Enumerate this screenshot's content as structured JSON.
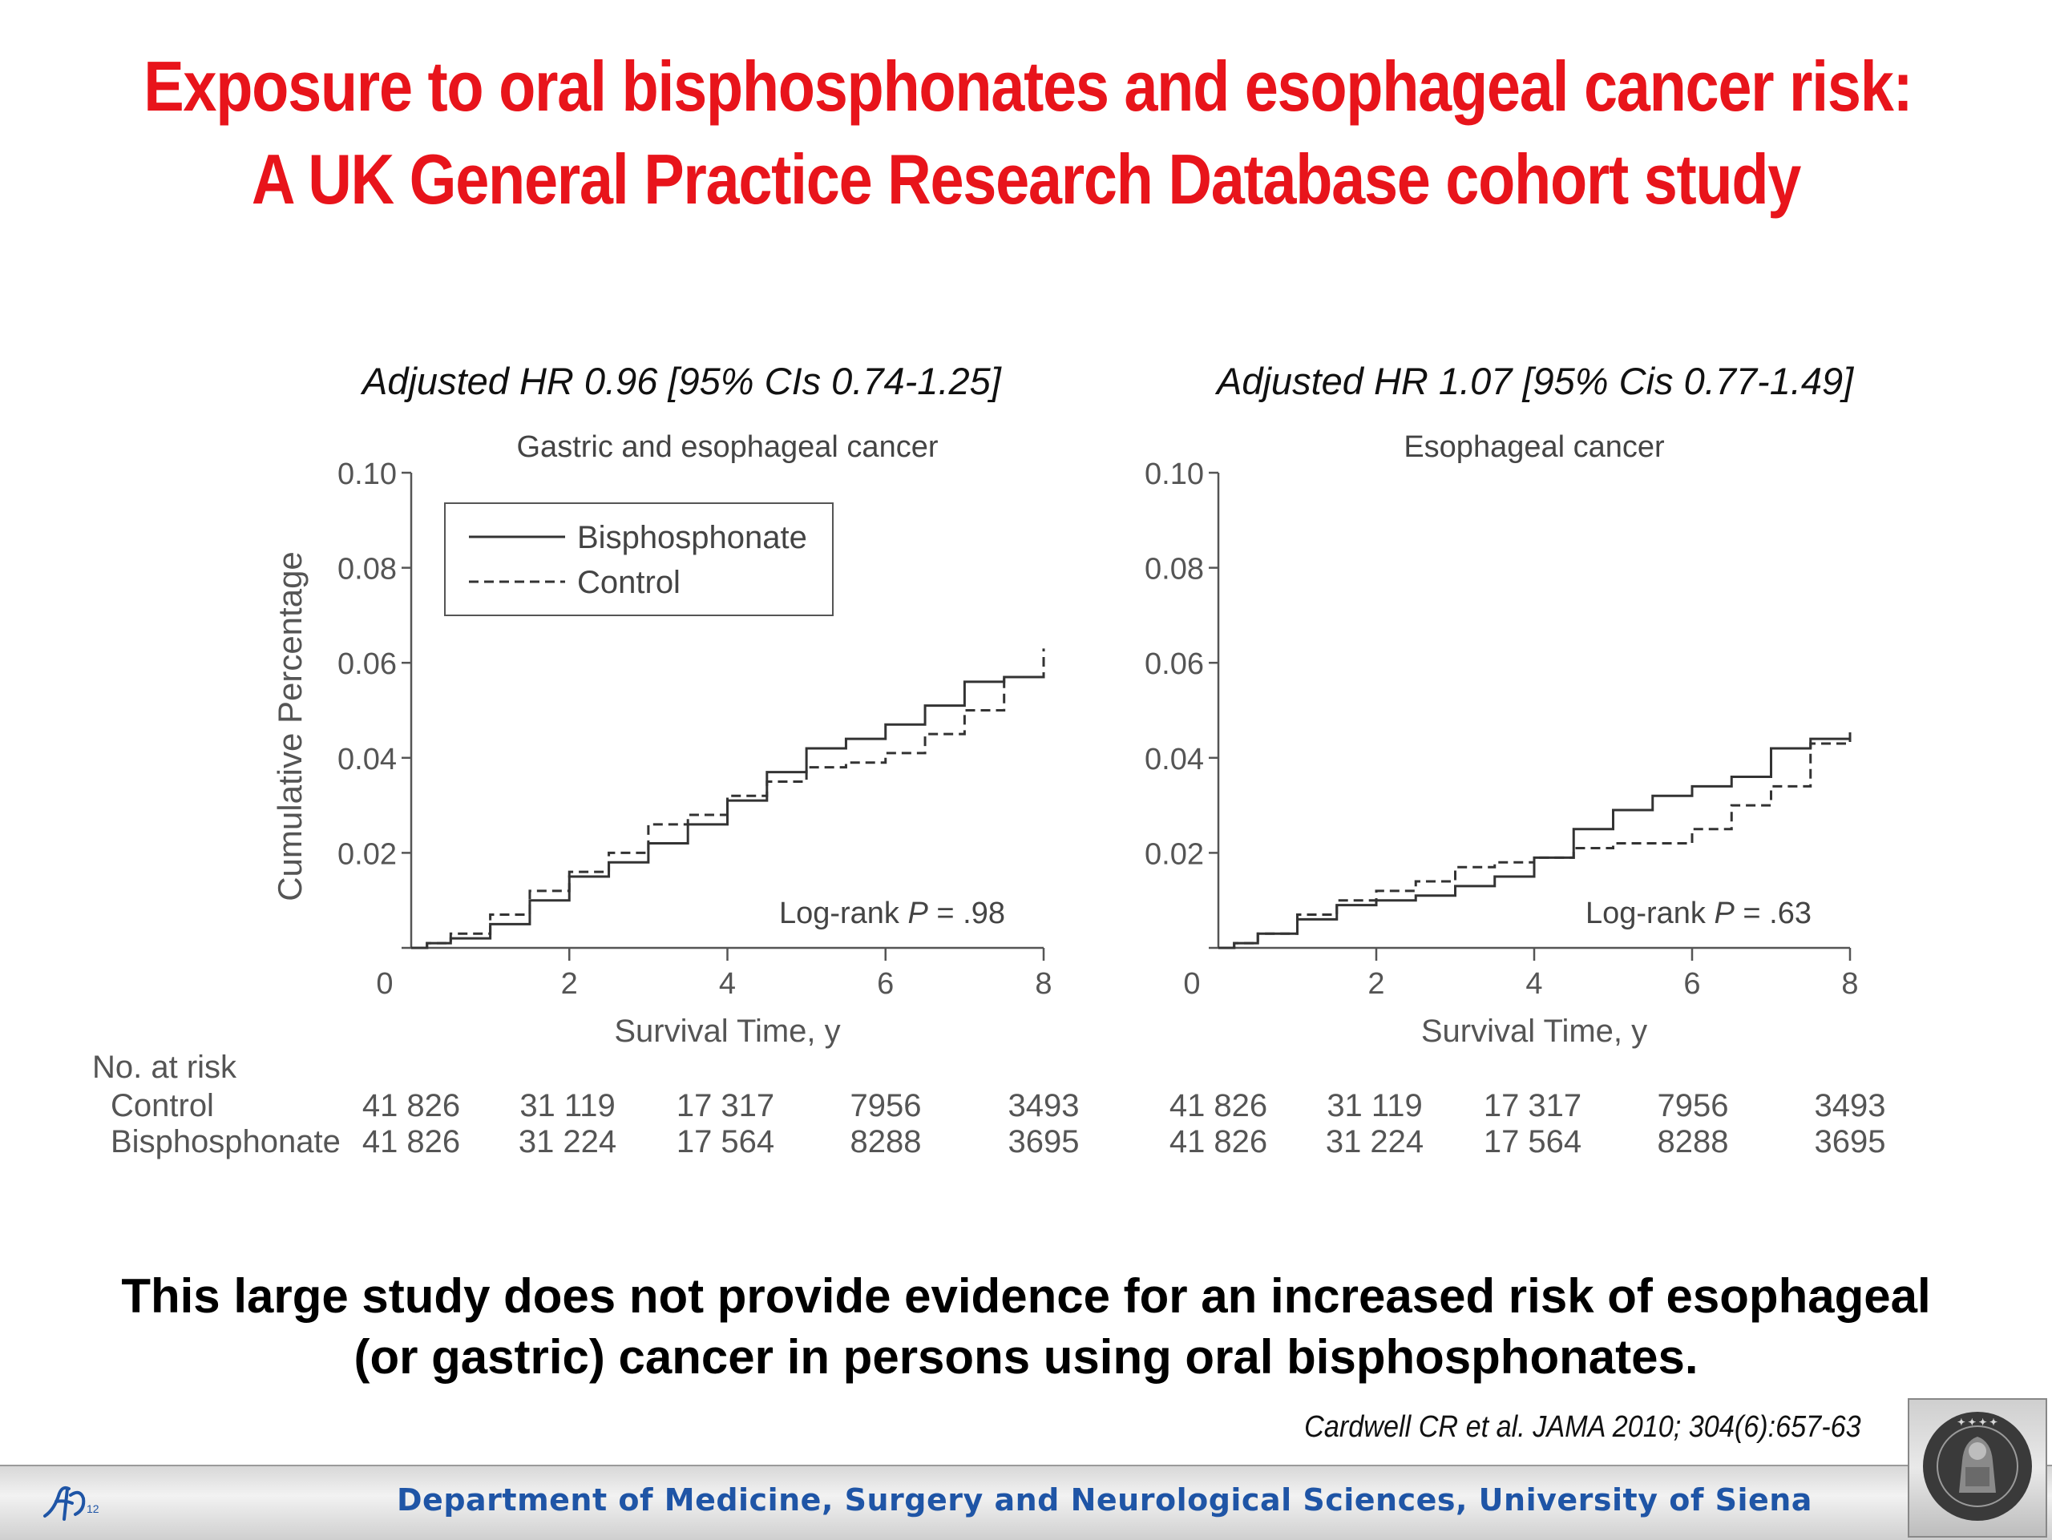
{
  "slide": {
    "title_line1": "Exposure to oral bisphosphonates and esophageal cancer risk:",
    "title_line2": "A UK General Practice Research Database cohort study",
    "conclusion_line1": "This large study does not provide evidence for an increased risk of esophageal",
    "conclusion_line2": "(or gastric) cancer in persons using oral bisphosphonates.",
    "citation": "Cardwell CR et al. JAMA 2010; 304(6):657-63",
    "footer": "Department of Medicine, Surgery and Neurological Sciences, University of Siena",
    "footer_logo_text": "12",
    "seal_text": "SIGILLVM UNIVERSITATIS SENENSIS MCCXXXX",
    "colors": {
      "title": "#e8141b",
      "footer_text": "#1f55a6",
      "axis": "#555555",
      "line": "#333333"
    }
  },
  "chart_data": [
    {
      "type": "line",
      "hr_label": "Adjusted HR 0.96 [95% CIs 0.74-1.25]",
      "title": "Gastric and esophageal cancer",
      "xlabel": "Survival Time, y",
      "ylabel": "Cumulative Percentage",
      "xlim": [
        0,
        8
      ],
      "ylim": [
        0,
        0.1
      ],
      "xticks": [
        "0",
        "2",
        "4",
        "6",
        "8"
      ],
      "yticks": [
        "0.02",
        "0.04",
        "0.06",
        "0.08",
        "0.10"
      ],
      "ytick_values": [
        0.02,
        0.04,
        0.06,
        0.08,
        0.1
      ],
      "legend_position": "top-left",
      "annotation_prefix": "Log-rank ",
      "annotation_p": "P",
      "annotation_value": " = .98",
      "series": [
        {
          "name": "Bisphosphonate",
          "style": "solid",
          "points": [
            [
              0,
              0
            ],
            [
              0.2,
              0.001
            ],
            [
              0.5,
              0.002
            ],
            [
              1,
              0.005
            ],
            [
              1.5,
              0.01
            ],
            [
              2,
              0.015
            ],
            [
              2.5,
              0.018
            ],
            [
              3,
              0.022
            ],
            [
              3.5,
              0.026
            ],
            [
              4,
              0.031
            ],
            [
              4.5,
              0.037
            ],
            [
              5,
              0.042
            ],
            [
              5.5,
              0.044
            ],
            [
              6,
              0.047
            ],
            [
              6.5,
              0.051
            ],
            [
              7,
              0.056
            ],
            [
              7.5,
              0.057
            ],
            [
              8,
              0.058
            ]
          ]
        },
        {
          "name": "Control",
          "style": "dashed",
          "points": [
            [
              0,
              0
            ],
            [
              0.2,
              0.001
            ],
            [
              0.5,
              0.003
            ],
            [
              1,
              0.007
            ],
            [
              1.5,
              0.012
            ],
            [
              2,
              0.016
            ],
            [
              2.5,
              0.02
            ],
            [
              3,
              0.026
            ],
            [
              3.5,
              0.028
            ],
            [
              4,
              0.032
            ],
            [
              4.5,
              0.035
            ],
            [
              5,
              0.038
            ],
            [
              5.5,
              0.039
            ],
            [
              6,
              0.041
            ],
            [
              6.5,
              0.045
            ],
            [
              7,
              0.05
            ],
            [
              7.5,
              0.057
            ],
            [
              8,
              0.063
            ]
          ]
        }
      ],
      "risk_table": {
        "header": "No. at risk",
        "rows": [
          {
            "label": "Control",
            "values": [
              "41 826",
              "31 119",
              "17 317",
              "7956",
              "3493"
            ]
          },
          {
            "label": "Bisphosphonate",
            "values": [
              "41 826",
              "31 224",
              "17 564",
              "8288",
              "3695"
            ]
          }
        ]
      }
    },
    {
      "type": "line",
      "hr_label": "Adjusted HR 1.07 [95% Cis 0.77-1.49]",
      "title": "Esophageal cancer",
      "xlabel": "Survival Time, y",
      "xlim": [
        0,
        8
      ],
      "ylim": [
        0,
        0.1
      ],
      "xticks": [
        "0",
        "2",
        "4",
        "6",
        "8"
      ],
      "yticks": [
        "0.02",
        "0.04",
        "0.06",
        "0.08",
        "0.10"
      ],
      "ytick_values": [
        0.02,
        0.04,
        0.06,
        0.08,
        0.1
      ],
      "annotation_prefix": "Log-rank ",
      "annotation_p": "P",
      "annotation_value": " = .63",
      "series": [
        {
          "name": "Bisphosphonate",
          "style": "solid",
          "points": [
            [
              0,
              0
            ],
            [
              0.2,
              0.001
            ],
            [
              0.5,
              0.003
            ],
            [
              1,
              0.006
            ],
            [
              1.5,
              0.009
            ],
            [
              2,
              0.01
            ],
            [
              2.5,
              0.011
            ],
            [
              3,
              0.013
            ],
            [
              3.5,
              0.015
            ],
            [
              4,
              0.019
            ],
            [
              4.5,
              0.025
            ],
            [
              5,
              0.029
            ],
            [
              5.5,
              0.032
            ],
            [
              6,
              0.034
            ],
            [
              6.5,
              0.036
            ],
            [
              7,
              0.042
            ],
            [
              7.5,
              0.044
            ],
            [
              8,
              0.045
            ]
          ]
        },
        {
          "name": "Control",
          "style": "dashed",
          "points": [
            [
              0,
              0
            ],
            [
              0.2,
              0.001
            ],
            [
              0.5,
              0.003
            ],
            [
              1,
              0.007
            ],
            [
              1.5,
              0.01
            ],
            [
              2,
              0.012
            ],
            [
              2.5,
              0.014
            ],
            [
              3,
              0.017
            ],
            [
              3.5,
              0.018
            ],
            [
              4,
              0.019
            ],
            [
              4.5,
              0.021
            ],
            [
              5,
              0.022
            ],
            [
              5.5,
              0.022
            ],
            [
              6,
              0.025
            ],
            [
              6.5,
              0.03
            ],
            [
              7,
              0.034
            ],
            [
              7.5,
              0.043
            ],
            [
              8,
              0.046
            ]
          ]
        }
      ],
      "risk_table": {
        "rows": [
          {
            "label": "Control",
            "values": [
              "41 826",
              "31 119",
              "17 317",
              "7956",
              "3493"
            ]
          },
          {
            "label": "Bisphosphonate",
            "values": [
              "41 826",
              "31 224",
              "17 564",
              "8288",
              "3695"
            ]
          }
        ]
      }
    }
  ]
}
